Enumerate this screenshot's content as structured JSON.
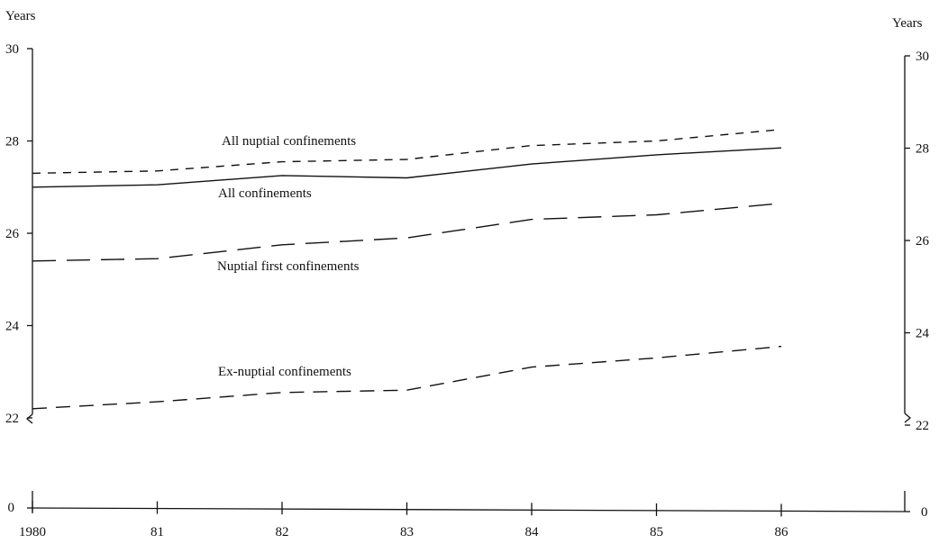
{
  "chart_data": {
    "type": "line",
    "x": [
      1980,
      1981,
      1982,
      1983,
      1984,
      1985,
      1986
    ],
    "x_tick_labels": [
      "1980",
      "81",
      "82",
      "83",
      "84",
      "85",
      "86"
    ],
    "y_axis_left_label": "Years",
    "y_axis_right_label": "Years",
    "y_ticks": [
      22,
      24,
      26,
      28,
      30
    ],
    "y_tick_labels": [
      "22",
      "24",
      "26",
      "28",
      "30"
    ],
    "y_zero_label": "0",
    "y_axis_break": true,
    "ylim": [
      22,
      30
    ],
    "grid": false,
    "legend": "none (labels placed beside lines)",
    "series": [
      {
        "name": "All nuptial confinements",
        "style": "short-dash",
        "values": [
          27.3,
          27.35,
          27.55,
          27.6,
          27.9,
          28.0,
          28.25
        ]
      },
      {
        "name": "All confinements",
        "style": "solid",
        "values": [
          27.0,
          27.05,
          27.25,
          27.2,
          27.5,
          27.7,
          27.85
        ]
      },
      {
        "name": "Nuptial first confinements",
        "style": "long-dash",
        "values": [
          25.4,
          25.45,
          25.75,
          25.9,
          26.3,
          26.4,
          26.65
        ]
      },
      {
        "name": "Ex-nuptial confinements",
        "style": "dash-dot",
        "values": [
          22.2,
          22.35,
          22.55,
          22.6,
          23.1,
          23.3,
          23.55
        ]
      }
    ]
  }
}
